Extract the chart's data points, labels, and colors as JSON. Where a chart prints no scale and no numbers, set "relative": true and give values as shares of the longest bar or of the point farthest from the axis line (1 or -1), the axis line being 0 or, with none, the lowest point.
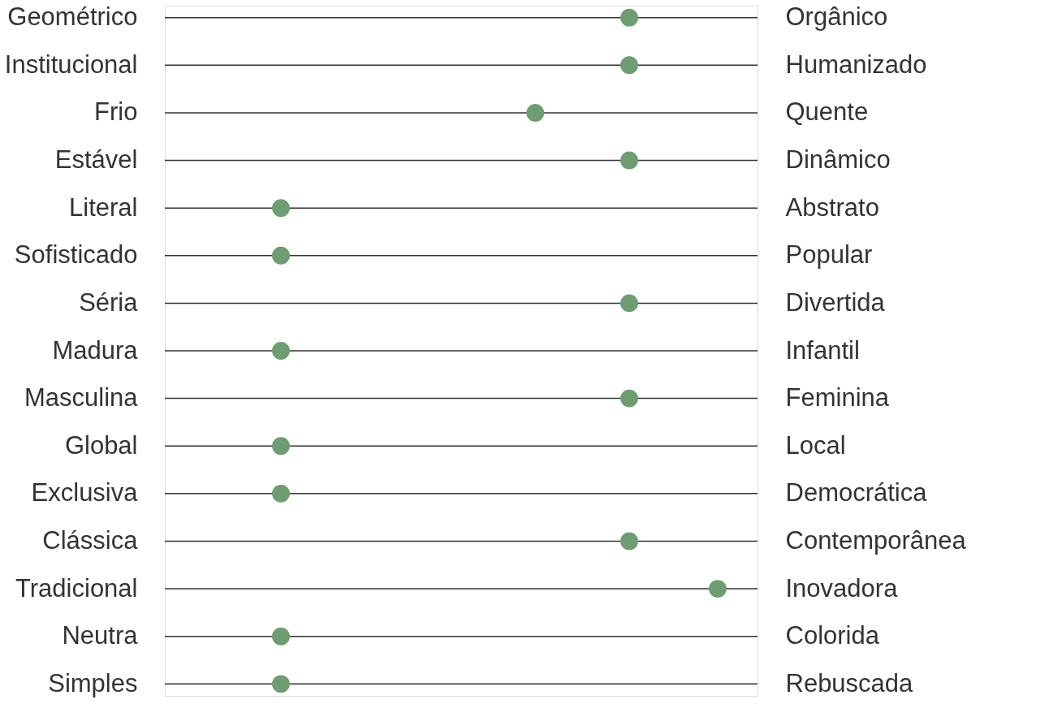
{
  "chart_data": {
    "type": "scatter",
    "orientation": "horizontal",
    "relative": true,
    "color": "#6f9c73",
    "grid": "y",
    "categories": [
      "Geométrico",
      "Institucional",
      "Frio",
      "Estável",
      "Literal",
      "Sofisticado",
      "Séria",
      "Madura",
      "Masculina",
      "Global",
      "Exclusiva",
      "Clássica",
      "Tradicional",
      "Neutra",
      "Simples"
    ],
    "y2_categories": [
      "Orgânico",
      "Humanizado",
      "Quente",
      "Dinâmico",
      "Abstrato",
      "Popular",
      "Divertida",
      "Infantil",
      "Feminina",
      "Local",
      "Democrática",
      "Contemporânea",
      "Inovadora",
      "Colorida",
      "Rebuscada"
    ],
    "values": [
      0.84,
      0.84,
      0.67,
      0.84,
      0.21,
      0.21,
      0.84,
      0.21,
      0.84,
      0.21,
      0.21,
      0.84,
      1,
      0.21,
      0.21
    ]
  }
}
